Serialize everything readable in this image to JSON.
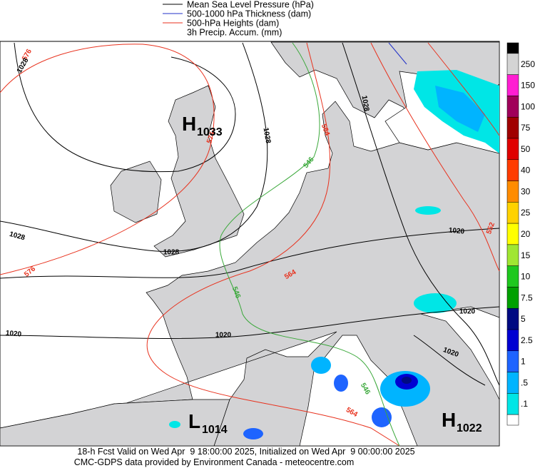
{
  "legend": [
    {
      "label": "Mean Sea Level Pressure (hPa)",
      "color": "#000000"
    },
    {
      "label": "500-1000 hPa Thickness (dam)",
      "color": "#2030c8"
    },
    {
      "label": "500-hPa Heights (dam)",
      "color": "#e8321e"
    },
    {
      "label": "3h Precip. Accum. (mm)",
      "color": null
    }
  ],
  "pressure_centers": [
    {
      "letter": "H",
      "value": "1033"
    },
    {
      "letter": "L",
      "value": "1014"
    },
    {
      "letter": "H",
      "value": "1022"
    }
  ],
  "contour_labels": [
    "576",
    "1028",
    "576",
    "1028",
    "564",
    "1028",
    "546",
    "1028",
    "1028",
    "576",
    "564",
    "546",
    "1020",
    "1020",
    "1020",
    "552",
    "1020",
    "1020",
    "546",
    "564"
  ],
  "color_scale": {
    "top_color": "#000000",
    "levels": [
      {
        "label": "250",
        "color": "#d4d4d4"
      },
      {
        "label": "150",
        "color": "#ff1ed2"
      },
      {
        "label": "100",
        "color": "#a0005a"
      },
      {
        "label": "75",
        "color": "#a00000"
      },
      {
        "label": "50",
        "color": "#e00000"
      },
      {
        "label": "40",
        "color": "#ff3c00"
      },
      {
        "label": "30",
        "color": "#ff8c00"
      },
      {
        "label": "25",
        "color": "#ffd200"
      },
      {
        "label": "20",
        "color": "#ffff00"
      },
      {
        "label": "15",
        "color": "#a0e632"
      },
      {
        "label": "10",
        "color": "#1ec81e"
      },
      {
        "label": "7.5",
        "color": "#00a000"
      },
      {
        "label": "5",
        "color": "#000a82"
      },
      {
        "label": "2.5",
        "color": "#0000d2"
      },
      {
        "label": "1",
        "color": "#1e64ff"
      },
      {
        "label": ".5",
        "color": "#00b4ff"
      },
      {
        "label": ".1",
        "color": "#00e6e6"
      }
    ],
    "bottom_color": "#ffffff"
  },
  "footer": [
    "18-h Fcst Valid on Wed Apr  9 18:00:00 2025, Initialized on Wed Apr  9 00:00:00 2025",
    "CMC-GDPS data provided by Environment Canada - meteocentre.com"
  ]
}
